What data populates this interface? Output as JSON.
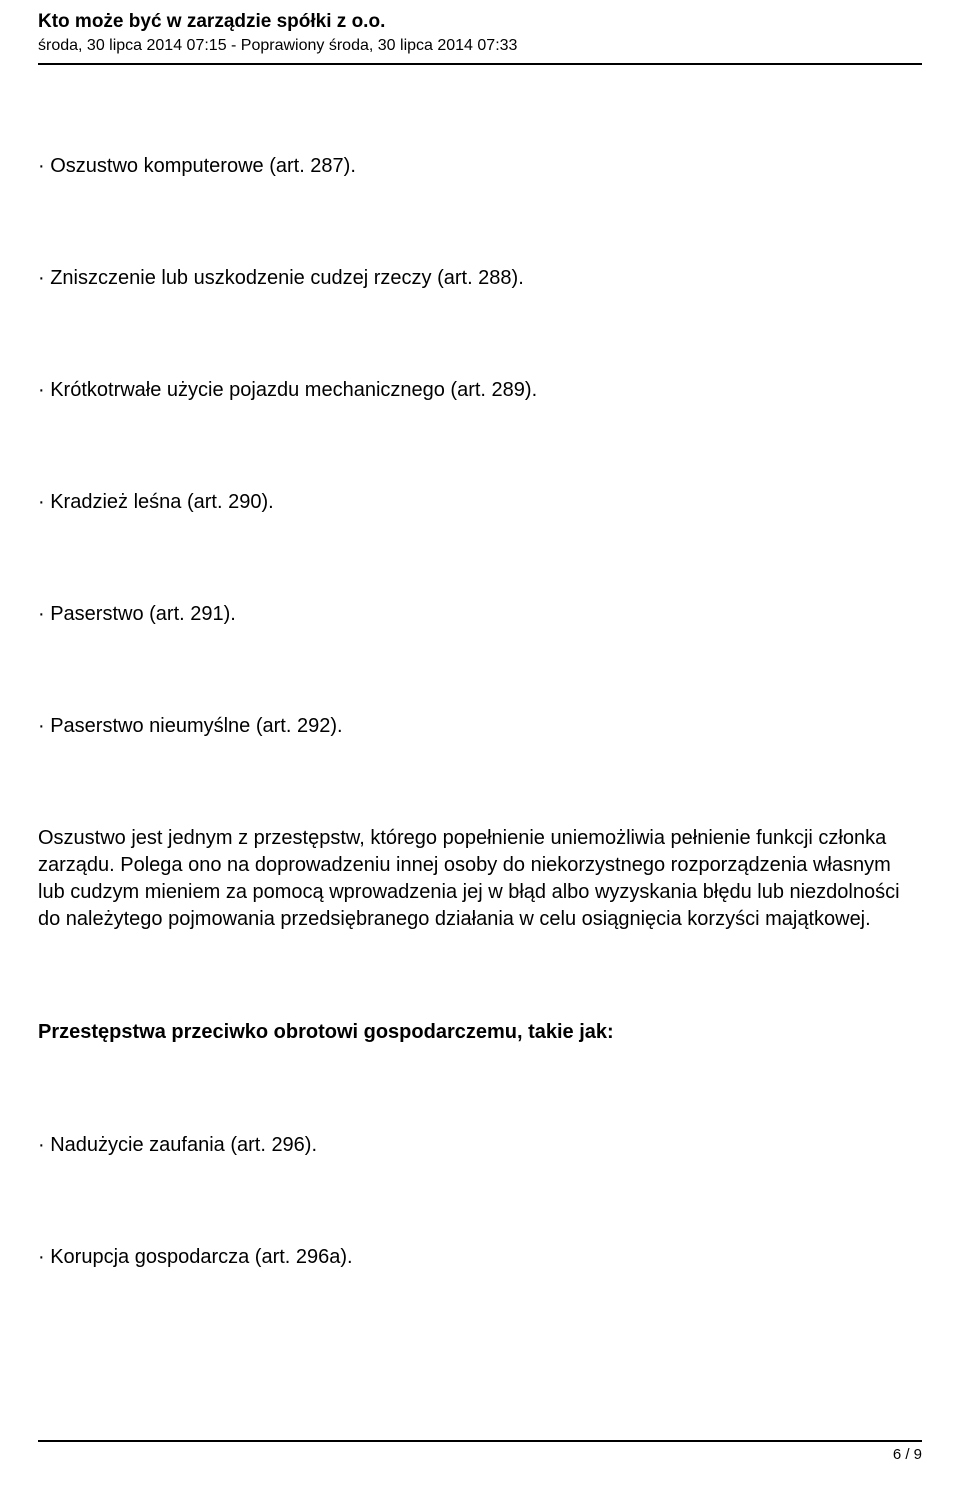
{
  "header": {
    "title": "Kto może być w zarządzie spółki z o.o.",
    "subtitle": "środa, 30 lipca 2014 07:15 - Poprawiony środa, 30 lipca 2014 07:33"
  },
  "items": [
    "· Oszustwo komputerowe (art. 287).",
    "· Zniszczenie lub uszkodzenie cudzej rzeczy (art. 288).",
    "· Krótkotrwałe użycie pojazdu mechanicznego (art. 289).",
    "· Kradzież leśna (art. 290).",
    "· Paserstwo (art. 291).",
    "· Paserstwo nieumyślne (art. 292)."
  ],
  "paragraph": "Oszustwo jest jednym z przestępstw, którego popełnienie uniemożliwia pełnienie funkcji członka zarządu. Polega ono na doprowadzeniu innej osoby do niekorzystnego rozporządzenia własnym lub cudzym mieniem za pomocą wprowadzenia jej w błąd albo wyzyskania błędu lub niezdolności do należytego pojmowania przedsiębranego działania w celu osiągnięcia korzyści majątkowej.",
  "subheading": "Przestępstwa przeciwko obrotowi gospodarczemu, takie jak:",
  "items2": [
    "· Nadużycie zaufania (art. 296).",
    "· Korupcja gospodarcza (art. 296a)."
  ],
  "footer": {
    "page": "6 / 9"
  }
}
